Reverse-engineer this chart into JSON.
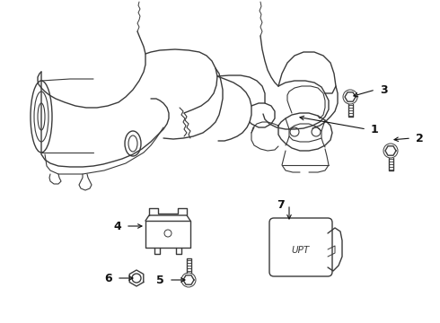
{
  "bg_color": "#ffffff",
  "line_color": "#3a3a3a",
  "label_color": "#111111",
  "lw": 1.0,
  "fig_width": 4.9,
  "fig_height": 3.6,
  "dpi": 100
}
